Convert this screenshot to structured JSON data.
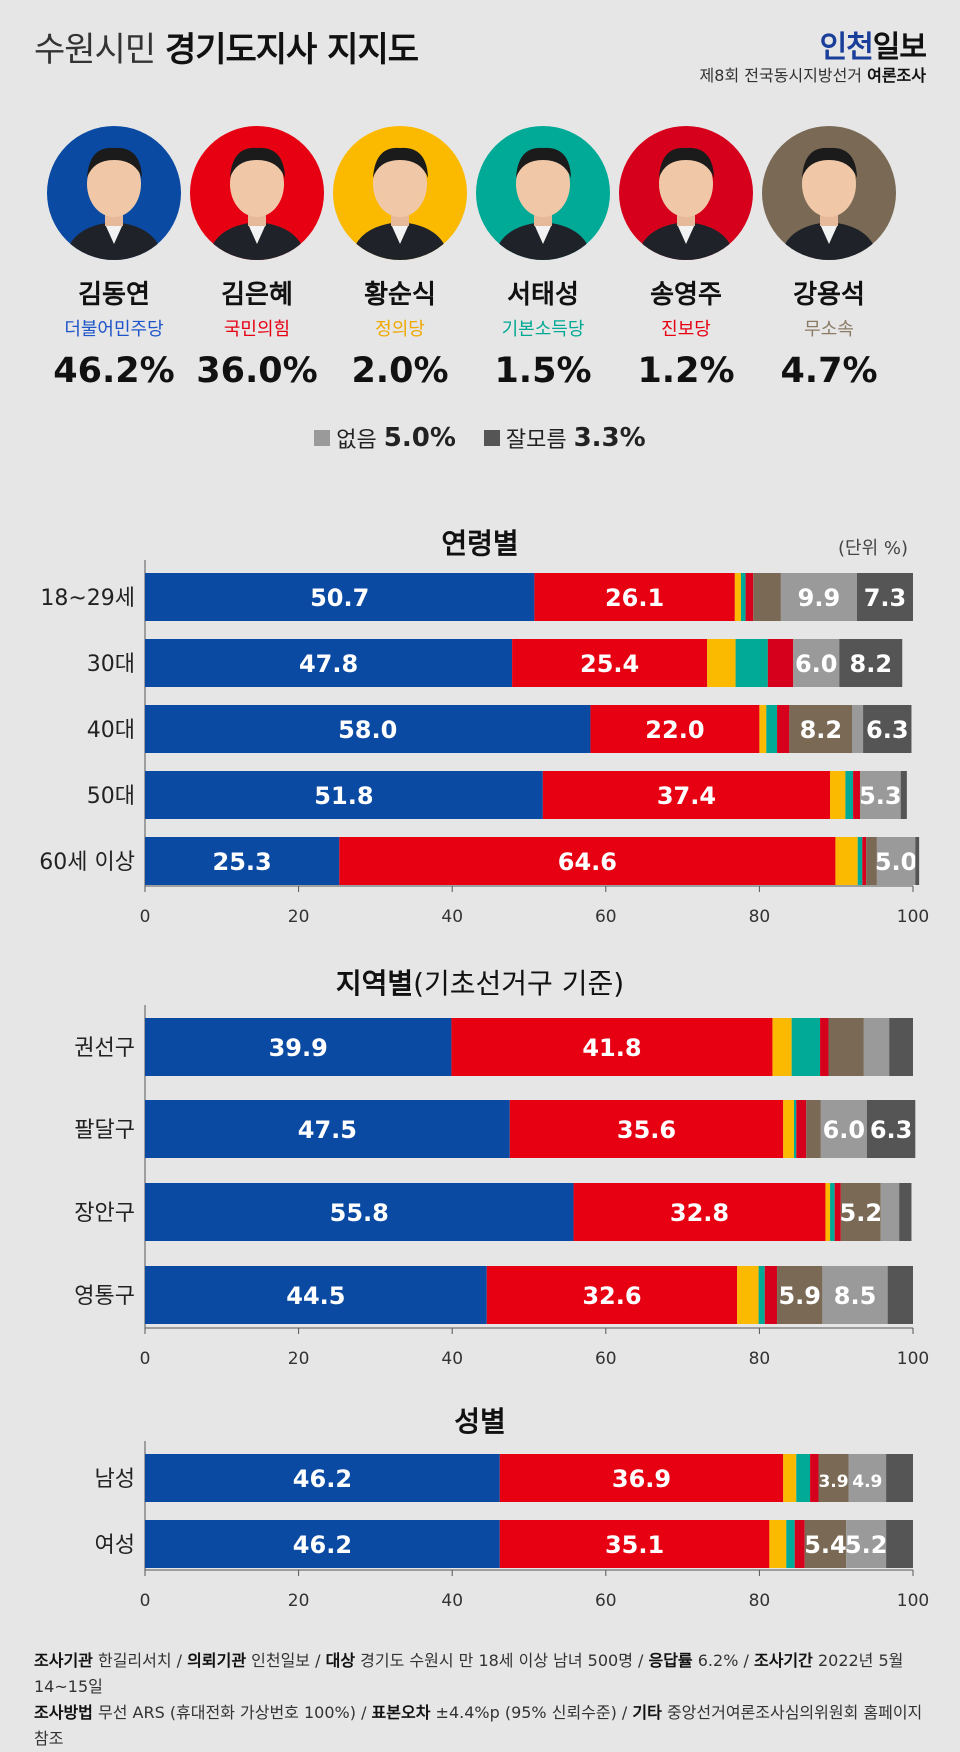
{
  "header": {
    "title_light": "수원시민",
    "title_bold": "경기도지사 지지도",
    "logo_part1": "인천",
    "logo_part2": "일보",
    "subtitle_light": "제8회 전국동시지방선거",
    "subtitle_bold": "여론조사"
  },
  "colors": {
    "minjoo": "#0a4aa3",
    "ppp": "#e60012",
    "justice": "#fbb900",
    "basic_income": "#00aa96",
    "progressive": "#d6001c",
    "independent": "#7a6a55",
    "none": "#9a9a9a",
    "unknown": "#555555"
  },
  "candidates": [
    {
      "name": "김동연",
      "party": "더불어민주당",
      "pct": "46.2%",
      "color": "#0a4aa3",
      "party_color": "#1e55c8",
      "avatar_bg": "#0a4aa3"
    },
    {
      "name": "김은혜",
      "party": "국민의힘",
      "pct": "36.0%",
      "color": "#e60012",
      "party_color": "#e60012",
      "avatar_bg": "#e60012"
    },
    {
      "name": "황순식",
      "party": "정의당",
      "pct": "2.0%",
      "color": "#fbb900",
      "party_color": "#f0a800",
      "avatar_bg": "#fbb900"
    },
    {
      "name": "서태성",
      "party": "기본소득당",
      "pct": "1.5%",
      "color": "#00aa96",
      "party_color": "#00a995",
      "avatar_bg": "#00aa96"
    },
    {
      "name": "송영주",
      "party": "진보당",
      "pct": "1.2%",
      "color": "#d6001c",
      "party_color": "#e60012",
      "avatar_bg": "#d6001c"
    },
    {
      "name": "강용석",
      "party": "무소속",
      "pct": "4.7%",
      "color": "#7a6a55",
      "party_color": "#8a7a66",
      "avatar_bg": "#7a6a55"
    }
  ],
  "legend": {
    "none_label": "없음",
    "none_value": "5.0%",
    "unknown_label": "잘모름",
    "unknown_value": "3.3%"
  },
  "sections": {
    "age_title": "연령별",
    "unit": "(단위 %)",
    "region_title_bold": "지역별",
    "region_title_light": "(기초선거구 기준)",
    "gender_title": "성별"
  },
  "chart_data": [
    {
      "type": "bar",
      "orientation": "horizontal",
      "stacked": true,
      "title": "연령별",
      "categories": [
        "18~29세",
        "30대",
        "40대",
        "50대",
        "60세 이상"
      ],
      "xlim": [
        0,
        100
      ],
      "xticks": [
        "0",
        "20",
        "40",
        "60",
        "80",
        "100"
      ],
      "series": [
        {
          "name": "김동연",
          "color": "#0a4aa3",
          "values": [
            50.7,
            47.8,
            58.0,
            51.8,
            25.3
          ],
          "labels": [
            "50.7",
            "47.8",
            "58.0",
            "51.8",
            "25.3"
          ]
        },
        {
          "name": "김은혜",
          "color": "#e60012",
          "values": [
            26.1,
            25.4,
            22.0,
            37.4,
            64.6
          ],
          "labels": [
            "26.1",
            "25.4",
            "22.0",
            "37.4",
            "64.6"
          ]
        },
        {
          "name": "황순식",
          "color": "#fbb900",
          "values": [
            0.8,
            3.7,
            0.9,
            2.0,
            2.9
          ],
          "labels": [
            "",
            "",
            "",
            "",
            ""
          ]
        },
        {
          "name": "서태성",
          "color": "#00aa96",
          "values": [
            0.6,
            4.2,
            1.4,
            1.0,
            0.6
          ],
          "labels": [
            "",
            "",
            "",
            "",
            ""
          ]
        },
        {
          "name": "송영주",
          "color": "#d6001c",
          "values": [
            1.0,
            3.3,
            1.6,
            0.9,
            0.5
          ],
          "labels": [
            "",
            "",
            "",
            "",
            ""
          ]
        },
        {
          "name": "강용석",
          "color": "#7a6a55",
          "values": [
            3.6,
            0.0,
            8.2,
            0.0,
            1.4
          ],
          "labels": [
            "",
            "",
            "8.2",
            "",
            ""
          ]
        },
        {
          "name": "없음",
          "color": "#9a9a9a",
          "values": [
            9.9,
            6.0,
            1.4,
            5.3,
            5.0
          ],
          "labels": [
            "9.9",
            "6.0",
            "",
            "5.3",
            "5.0"
          ]
        },
        {
          "name": "잘모름",
          "color": "#555555",
          "values": [
            7.3,
            8.2,
            6.3,
            0.8,
            0.5
          ],
          "labels": [
            "7.3",
            "8.2",
            "6.3",
            "",
            ""
          ]
        }
      ]
    },
    {
      "type": "bar",
      "orientation": "horizontal",
      "stacked": true,
      "title": "지역별(기초선거구 기준)",
      "categories": [
        "권선구",
        "팔달구",
        "장안구",
        "영통구"
      ],
      "xlim": [
        0,
        100
      ],
      "xticks": [
        "0",
        "20",
        "40",
        "60",
        "80",
        "100"
      ],
      "series": [
        {
          "name": "김동연",
          "color": "#0a4aa3",
          "values": [
            39.9,
            47.5,
            55.8,
            44.5
          ],
          "labels": [
            "39.9",
            "47.5",
            "55.8",
            "44.5"
          ]
        },
        {
          "name": "김은혜",
          "color": "#e60012",
          "values": [
            41.8,
            35.6,
            32.8,
            32.6
          ],
          "labels": [
            "41.8",
            "35.6",
            "32.8",
            "32.6"
          ]
        },
        {
          "name": "황순식",
          "color": "#fbb900",
          "values": [
            2.5,
            1.4,
            0.6,
            2.8
          ],
          "labels": [
            "",
            "",
            "",
            ""
          ]
        },
        {
          "name": "서태성",
          "color": "#00aa96",
          "values": [
            3.7,
            0.3,
            0.6,
            0.8
          ],
          "labels": [
            "",
            "",
            "",
            ""
          ]
        },
        {
          "name": "송영주",
          "color": "#d6001c",
          "values": [
            1.1,
            1.3,
            0.8,
            1.6
          ],
          "labels": [
            "",
            "",
            "",
            ""
          ]
        },
        {
          "name": "강용석",
          "color": "#7a6a55",
          "values": [
            4.6,
            1.9,
            5.2,
            5.9
          ],
          "labels": [
            "",
            "",
            "5.2",
            "5.9"
          ]
        },
        {
          "name": "없음",
          "color": "#9a9a9a",
          "values": [
            3.3,
            6.0,
            2.4,
            8.5
          ],
          "labels": [
            "",
            "6.0",
            "",
            "8.5"
          ]
        },
        {
          "name": "잘모름",
          "color": "#555555",
          "values": [
            3.1,
            6.3,
            1.6,
            3.3
          ],
          "labels": [
            "",
            "6.3",
            "",
            ""
          ]
        }
      ]
    },
    {
      "type": "bar",
      "orientation": "horizontal",
      "stacked": true,
      "title": "성별",
      "categories": [
        "남성",
        "여성"
      ],
      "xlim": [
        0,
        100
      ],
      "xticks": [
        "0",
        "20",
        "40",
        "60",
        "80",
        "100"
      ],
      "series": [
        {
          "name": "김동연",
          "color": "#0a4aa3",
          "values": [
            46.2,
            46.2
          ],
          "labels": [
            "46.2",
            "46.2"
          ]
        },
        {
          "name": "김은혜",
          "color": "#e60012",
          "values": [
            36.9,
            35.1
          ],
          "labels": [
            "36.9",
            "35.1"
          ]
        },
        {
          "name": "황순식",
          "color": "#fbb900",
          "values": [
            1.7,
            2.2
          ],
          "labels": [
            "",
            ""
          ]
        },
        {
          "name": "서태성",
          "color": "#00aa96",
          "values": [
            1.8,
            1.1
          ],
          "labels": [
            "",
            ""
          ]
        },
        {
          "name": "송영주",
          "color": "#d6001c",
          "values": [
            1.1,
            1.3
          ],
          "labels": [
            "",
            ""
          ]
        },
        {
          "name": "강용석",
          "color": "#7a6a55",
          "values": [
            3.9,
            5.4
          ],
          "labels": [
            "3.9",
            "5.4"
          ]
        },
        {
          "name": "없음",
          "color": "#9a9a9a",
          "values": [
            4.9,
            5.2
          ],
          "labels": [
            "4.9",
            "5.2"
          ]
        },
        {
          "name": "잘모름",
          "color": "#555555",
          "values": [
            3.5,
            3.5
          ],
          "labels": [
            "",
            ""
          ]
        }
      ]
    }
  ],
  "footer": {
    "org_label": "조사기관",
    "org": "한길리서치",
    "client_label": "의뢰기관",
    "client": "인천일보",
    "target_label": "대상",
    "target": "경기도 수원시 만 18세 이상 남녀 500명",
    "resp_label": "응답률",
    "resp": "6.2%",
    "period_label": "조사기간",
    "period": "2022년 5월 14~15일",
    "method_label": "조사방법",
    "method": "무선 ARS (휴대전화 가상번호 100%)",
    "error_label": "표본오차",
    "error": "±4.4%p (95% 신뢰수준)",
    "etc_label": "기타",
    "etc": "중앙선거여론조사심의위원회 홈페이지 참조"
  }
}
